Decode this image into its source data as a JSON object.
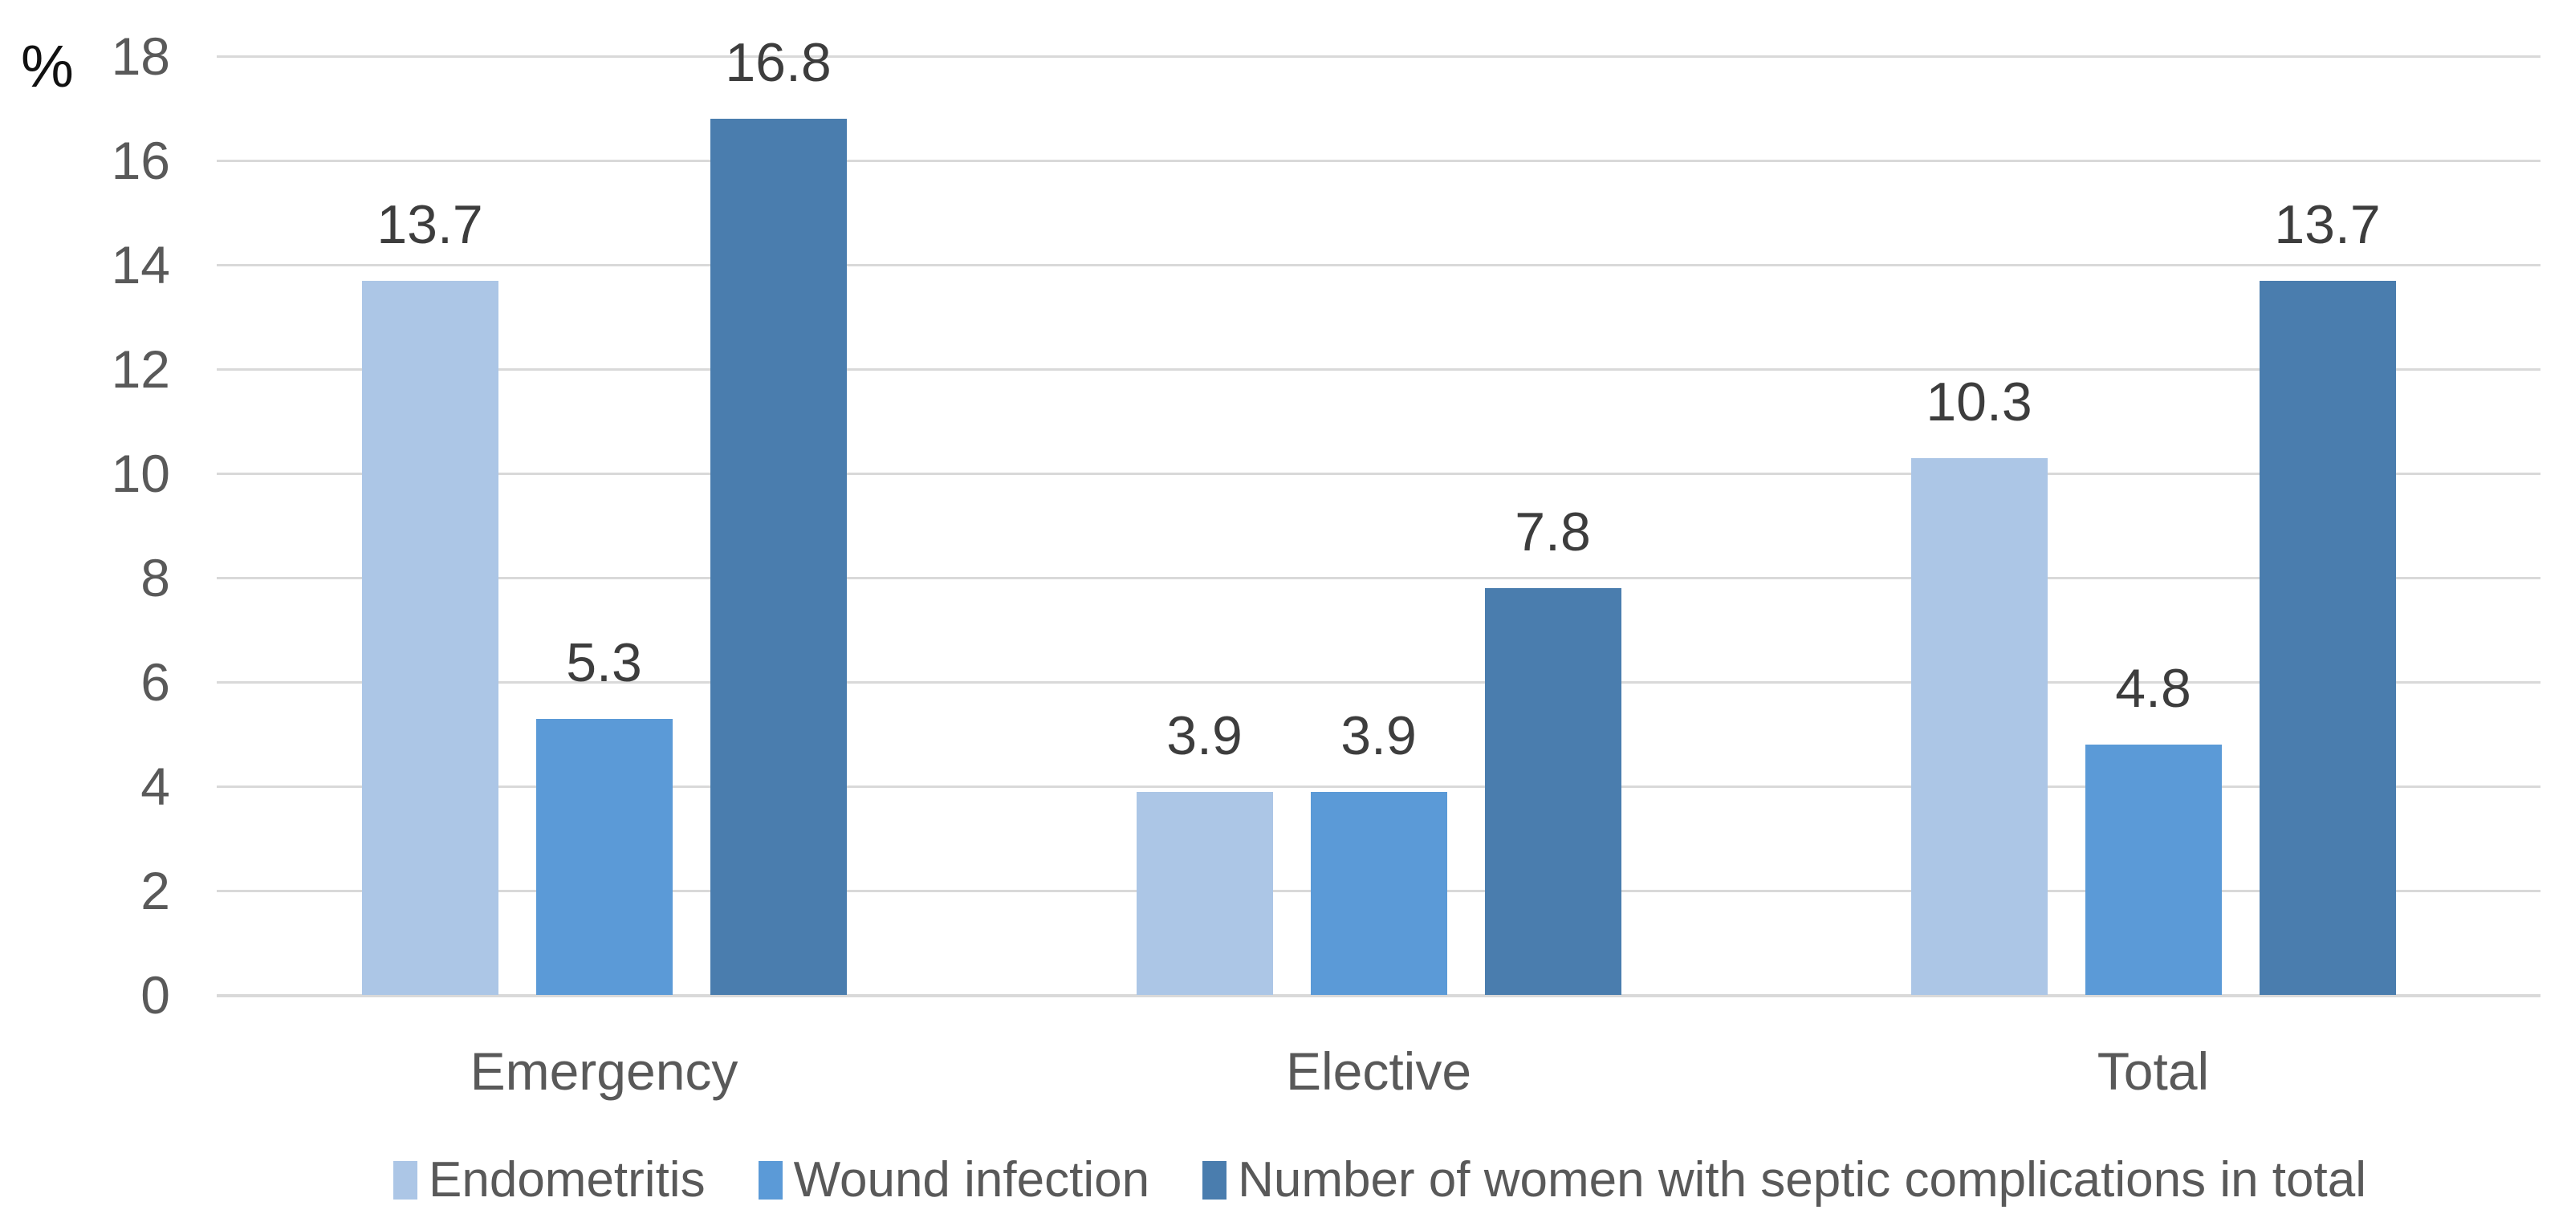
{
  "chart_data": {
    "type": "bar",
    "title": "",
    "ylabel": "%",
    "xlabel": "",
    "categories": [
      "Emergency",
      "Elective",
      "Total"
    ],
    "series": [
      {
        "name": "Endometritis",
        "color": "#acc6e6",
        "values": [
          13.7,
          3.9,
          10.3
        ]
      },
      {
        "name": "Wound infection",
        "color": "#5b9ad7",
        "values": [
          5.3,
          3.9,
          4.8
        ]
      },
      {
        "name": "Number of women with septic complications in total",
        "color": "#4a7dae",
        "values": [
          16.8,
          7.8,
          13.7
        ]
      }
    ],
    "value_labels": {
      "Endometritis": [
        "13.7",
        "3.9",
        "10.3"
      ],
      "Wound infection": [
        "5.3",
        "3.9",
        "4.8"
      ],
      "Number of women with septic complications in total": [
        "16.8",
        "7.8",
        "13.7"
      ]
    },
    "ylim": [
      0,
      18
    ],
    "ytick_step": 2,
    "yticks": [
      "0",
      "2",
      "4",
      "6",
      "8",
      "10",
      "12",
      "14",
      "16",
      "18"
    ],
    "grid": true,
    "gridline_color": "#d9d9d9",
    "legend_position": "bottom",
    "text_color_axis": "#595959",
    "text_color_values": "#3d3d3d",
    "background_color": "#ffffff"
  }
}
